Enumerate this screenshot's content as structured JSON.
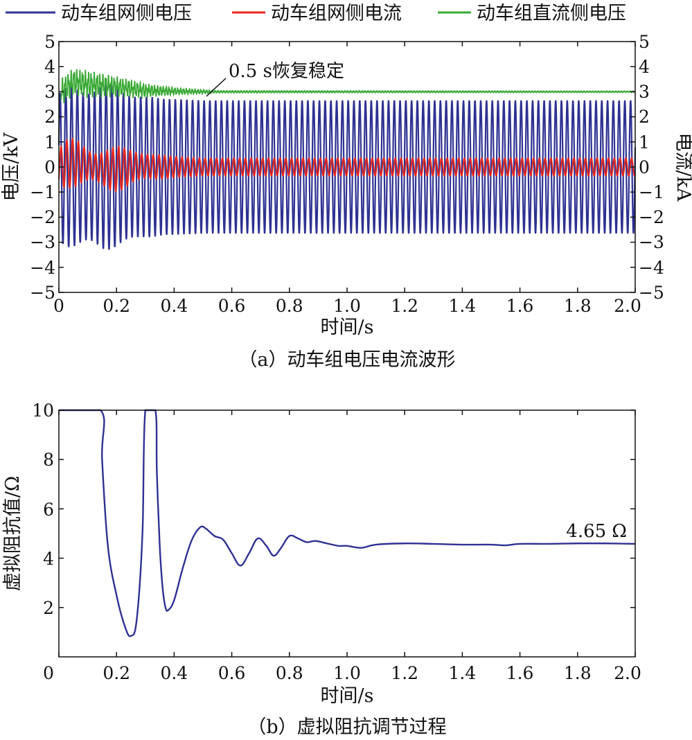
{
  "chart_data": [
    {
      "type": "line",
      "caption": "（a）动车组电压电流波形",
      "xlabel": "时间/s",
      "ylabel_left": "电压/kV",
      "ylabel_right": "电流/kA",
      "xlim": [
        0,
        2.0
      ],
      "ylim_left": [
        -5,
        5
      ],
      "ylim_right": [
        -5,
        5
      ],
      "xticks": [
        "0",
        "0.2",
        "0.4",
        "0.6",
        "0.8",
        "1.0",
        "1.2",
        "1.4",
        "1.6",
        "1.8",
        "2.0"
      ],
      "yticks_left": [
        "−5",
        "−4",
        "−3",
        "−2",
        "−1",
        "0",
        "1",
        "2",
        "3",
        "4",
        "5"
      ],
      "yticks_right": [
        "−5",
        "−4",
        "−3",
        "−2",
        "−1",
        "0",
        "1",
        "2",
        "3",
        "4",
        "5"
      ],
      "legend_position": "top",
      "grid": false,
      "annotation": {
        "text": "0.5 s恢复稳定",
        "x": 0.52,
        "y": 2.75
      },
      "series": [
        {
          "name": "动车组网侧电压",
          "color": "#2e3192",
          "axis": "left",
          "kind": "sinusoid",
          "frequency_hz": 50,
          "steady_amplitude": 2.65,
          "startup_amplitude": [
            [
              0,
              2.9
            ],
            [
              0.16,
              3.2
            ],
            [
              0.3,
              2.75
            ],
            [
              0.5,
              2.65
            ],
            [
              2.0,
              2.65
            ]
          ]
        },
        {
          "name": "动车组网侧电流",
          "color": "#e8261c",
          "axis": "right",
          "kind": "sinusoid",
          "frequency_hz": 50,
          "steady_amplitude": 0.35,
          "startup_amplitude": [
            [
              0,
              0.7
            ],
            [
              0.2,
              0.75
            ],
            [
              0.35,
              0.45
            ],
            [
              0.5,
              0.35
            ],
            [
              2.0,
              0.35
            ]
          ]
        },
        {
          "name": "动车组直流侧电压",
          "color": "#3aa935",
          "axis": "left",
          "kind": "dc",
          "steady_value": 3.0,
          "x": [
            0,
            0.01,
            0.05,
            0.1,
            0.2,
            0.3,
            0.4,
            0.5,
            0.6,
            2.0
          ],
          "y": [
            2.3,
            3.0,
            3.4,
            3.3,
            3.2,
            3.05,
            3.02,
            3.0,
            3.0,
            3.0
          ],
          "ripple": [
            [
              0,
              0.55
            ],
            [
              0.1,
              0.55
            ],
            [
              0.25,
              0.35
            ],
            [
              0.4,
              0.15
            ],
            [
              0.55,
              0.05
            ],
            [
              2.0,
              0.03
            ]
          ]
        }
      ]
    },
    {
      "type": "line",
      "caption": "（b）虚拟阻抗调节过程",
      "xlabel": "时间/s",
      "ylabel": "虚拟阻抗值/Ω",
      "xlim": [
        0,
        2.0
      ],
      "ylim": [
        0,
        10
      ],
      "xticks": [
        "0",
        "0.2",
        "0.4",
        "0.6",
        "0.8",
        "1.0",
        "1.2",
        "1.4",
        "1.6",
        "1.8",
        "2.0"
      ],
      "yticks": [
        "2",
        "4",
        "6",
        "8",
        "10"
      ],
      "grid": false,
      "annotation": {
        "text": "4.65 Ω",
        "x": 1.95,
        "y": 4.65
      },
      "series": [
        {
          "color": "#2e3192",
          "x": [
            0,
            0.145,
            0.15,
            0.17,
            0.2,
            0.23,
            0.25,
            0.27,
            0.29,
            0.3,
            0.335,
            0.34,
            0.35,
            0.36,
            0.37,
            0.38,
            0.4,
            0.43,
            0.46,
            0.49,
            0.51,
            0.54,
            0.57,
            0.6,
            0.63,
            0.66,
            0.69,
            0.72,
            0.745,
            0.77,
            0.8,
            0.83,
            0.86,
            0.89,
            0.93,
            0.97,
            1.0,
            1.05,
            1.1,
            1.2,
            1.3,
            1.4,
            1.5,
            1.55,
            1.6,
            1.7,
            1.8,
            1.9,
            2.0
          ],
          "y": [
            10,
            10,
            8.0,
            4.5,
            2.5,
            1.2,
            0.85,
            1.5,
            5.0,
            10,
            10,
            7.5,
            4.5,
            2.8,
            2.0,
            1.9,
            2.3,
            3.6,
            4.7,
            5.25,
            5.2,
            4.9,
            4.75,
            4.2,
            3.7,
            4.2,
            4.8,
            4.5,
            4.1,
            4.4,
            4.9,
            4.8,
            4.65,
            4.7,
            4.6,
            4.5,
            4.5,
            4.42,
            4.55,
            4.6,
            4.58,
            4.55,
            4.55,
            4.52,
            4.58,
            4.58,
            4.6,
            4.6,
            4.58
          ]
        }
      ]
    }
  ]
}
